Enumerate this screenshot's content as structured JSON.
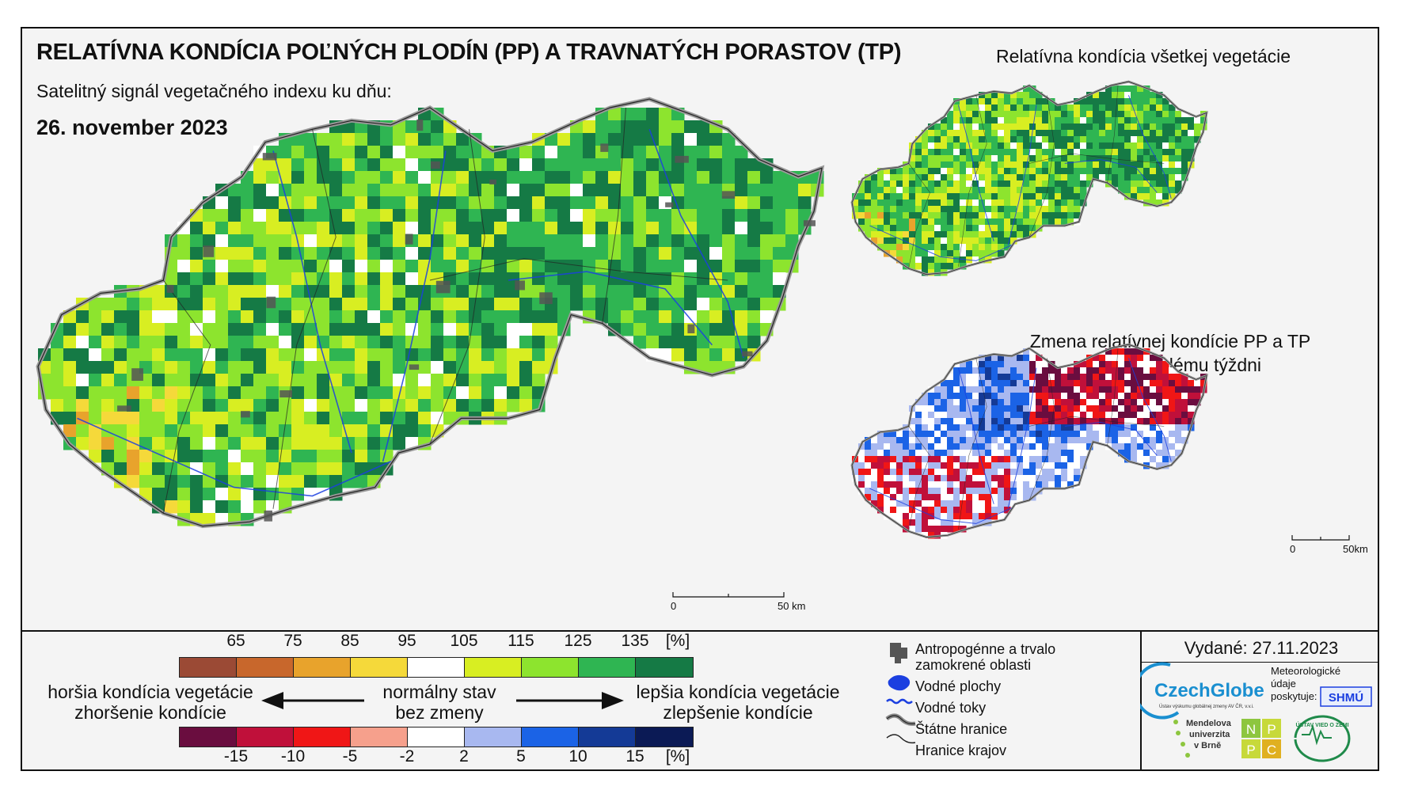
{
  "header": {
    "title": "RELATÍVNA KONDÍCIA POĽNÝCH PLODÍN (PP) A TRAVNATÝCH PORASTOV (TP)",
    "subtitle": "Satelitný signál vegetačného indexu ku dňu:",
    "date": "26. november 2023"
  },
  "right_panels": {
    "top_title": "Relatívna kondícia všetkej vegetácie",
    "bottom_title_line1": "Zmena relatívnej kondície PP a TP",
    "bottom_title_line2": "oproti minulému týždni"
  },
  "scalebars": {
    "main": {
      "start": "0",
      "end": "50 km"
    },
    "small": {
      "start": "0",
      "end": "50km"
    }
  },
  "legend": {
    "condition": {
      "ticks": [
        "65",
        "75",
        "85",
        "95",
        "105",
        "115",
        "125",
        "135",
        "[%]"
      ],
      "colors": [
        "#9b4a35",
        "#c8672c",
        "#e8a32c",
        "#f5d93a",
        "#ffffff",
        "#d8ee22",
        "#8de42e",
        "#2fb552",
        "#157a45"
      ]
    },
    "change": {
      "ticks": [
        "-15",
        "-10",
        "-5",
        "-2",
        "2",
        "5",
        "10",
        "15",
        "[%]"
      ],
      "colors": [
        "#6a0d3f",
        "#c0103a",
        "#f01616",
        "#f6a08c",
        "#ffffff",
        "#a8b8f0",
        "#1b63e6",
        "#143a96",
        "#0b1a55"
      ]
    },
    "worse_line1": "horšia kondícia vegetácie",
    "worse_line2": "zhoršenie kondície",
    "normal_line1": "normálny stav",
    "normal_line2": "bez zmeny",
    "better_line1": "lepšia kondícia vegetácie",
    "better_line2": "zlepšenie kondície"
  },
  "key": {
    "anthro_line1": "Antropogénne a trvalo",
    "anthro_line2": "zamokrené oblasti",
    "water_bodies": "Vodné plochy",
    "rivers": "Vodné toky",
    "state_border": "Štátne hranice",
    "regional_border": "Hranice krajov",
    "colors": {
      "anthro": "#555555",
      "water": "#1b3fe0",
      "border": "#777777"
    }
  },
  "footer": {
    "issued": "Vydané: 27.11.2023",
    "logos": {
      "czechglobe": "CzechGlobe",
      "czechglobe_sub": "Ústav výskumu globálnej zmeny AV ČR, v.v.i.",
      "meteo_line1": "Meteorologické",
      "meteo_line2": "údaje",
      "meteo_line3": "poskytuje:",
      "shmu": "SHMÚ",
      "mendel_line1": "Mendelova",
      "mendel_line2": "univerzita",
      "mendel_line3": "v Brně",
      "nppc": [
        "N",
        "P",
        "P",
        "C"
      ],
      "uvz": "ÚSTAV VIED O ZEMI"
    }
  }
}
